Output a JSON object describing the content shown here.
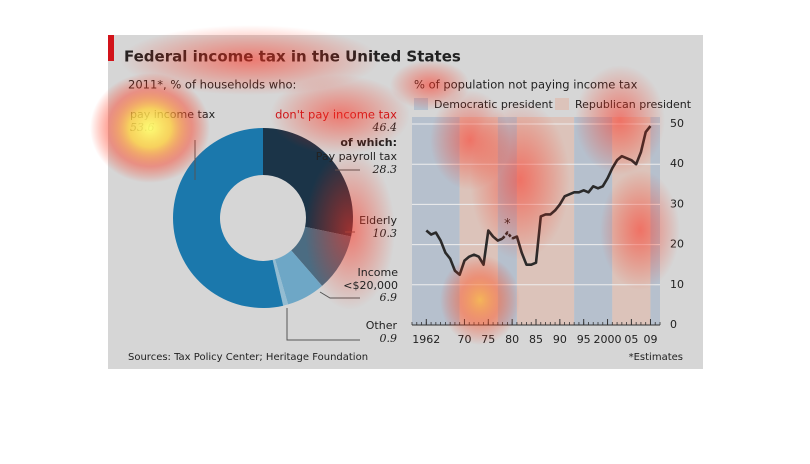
{
  "title": "Federal income tax in the United States",
  "source": "Sources: Tax Policy Center; Heritage Foundation",
  "chart_data": [
    {
      "type": "donut",
      "subtitle": "2011*, % of households who:",
      "categories": [
        "Pay payroll tax",
        "Elderly",
        "Income <$20,000",
        "Other",
        "pay income tax"
      ],
      "values": [
        28.3,
        10.3,
        6.9,
        0.9,
        53.6
      ],
      "colors": [
        "#1b3448",
        "#4b6c82",
        "#6ea7c6",
        "#93bcd2",
        "#1b78ac"
      ],
      "group_label": "don't pay income tax",
      "group_value": 46.4,
      "group_sub": "of which:"
    },
    {
      "type": "line",
      "subtitle": "% of population not paying income tax",
      "legend": [
        {
          "name": "Democratic president",
          "color": "#b6c0cd"
        },
        {
          "name": "Republican president",
          "color": "#dcc3ba"
        }
      ],
      "periods": [
        {
          "party": 0,
          "start": 1959,
          "end": 1969
        },
        {
          "party": 1,
          "start": 1969,
          "end": 1977
        },
        {
          "party": 0,
          "start": 1977,
          "end": 1981
        },
        {
          "party": 1,
          "start": 1981,
          "end": 1993
        },
        {
          "party": 0,
          "start": 1993,
          "end": 2001
        },
        {
          "party": 1,
          "start": 2001,
          "end": 2009
        },
        {
          "party": 0,
          "start": 2009,
          "end": 2011
        }
      ],
      "x": [
        1962,
        1963,
        1964,
        1965,
        1966,
        1967,
        1968,
        1969,
        1970,
        1971,
        1972,
        1973,
        1974,
        1975,
        1976,
        1977,
        1978,
        1979,
        1980,
        1981,
        1982,
        1983,
        1984,
        1985,
        1986,
        1987,
        1988,
        1989,
        1990,
        1991,
        1992,
        1993,
        1994,
        1995,
        1996,
        1997,
        1998,
        1999,
        2000,
        2001,
        2002,
        2003,
        2004,
        2005,
        2006,
        2007,
        2008,
        2009
      ],
      "series": [
        {
          "color": "#2a2a2a",
          "values": [
            23.5,
            22.5,
            23,
            21,
            18,
            16.5,
            13.5,
            12.5,
            16,
            17,
            17.5,
            17,
            15,
            23.5,
            22,
            21,
            21.5,
            null,
            21.5,
            22,
            18,
            15,
            15,
            15.5,
            27,
            27.5,
            27.5,
            28.5,
            30,
            32,
            32.5,
            33,
            33,
            33.5,
            33,
            34.5,
            34,
            34.5,
            36.5,
            39,
            41,
            42,
            41.5,
            41,
            40,
            43,
            48,
            49.5
          ]
        },
        {
          "color": "#2a2a2a",
          "dashed": true,
          "x": [
            1978,
            1979,
            1980
          ],
          "values": [
            21.5,
            23,
            21.5
          ],
          "marker": "*"
        }
      ],
      "xlim": [
        1959,
        2011
      ],
      "xticks": [
        1962,
        {
          "value": 1970,
          "label": "70"
        },
        {
          "value": 1975,
          "label": "75"
        },
        {
          "value": 1980,
          "label": "80"
        },
        {
          "value": 1985,
          "label": "85"
        },
        {
          "value": 1990,
          "label": "90"
        },
        {
          "value": 1995,
          "label": "95"
        },
        2000,
        {
          "value": 2005,
          "label": "05"
        },
        {
          "value": 2009,
          "label": "09"
        }
      ],
      "ylim": [
        0,
        50
      ],
      "yticks": [
        0,
        10,
        20,
        30,
        40,
        50
      ],
      "grid": true,
      "note": "*Estimates"
    }
  ]
}
